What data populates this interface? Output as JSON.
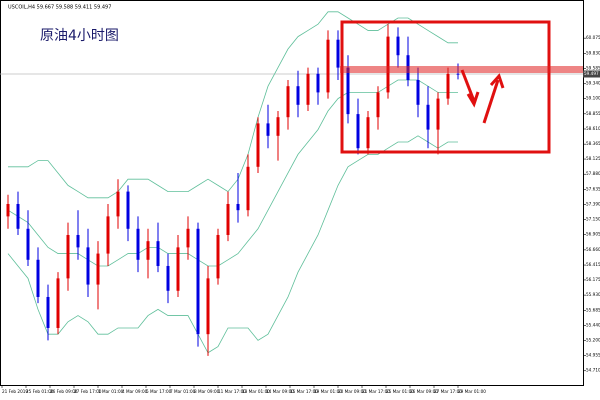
{
  "chart_data": {
    "type": "candlestick",
    "header": "USCOIL,H4 59.667 59.588 59.411 59.497",
    "annotation": "原油4小时图",
    "up_color": "#e00000",
    "down_color": "#0000e0",
    "band_color": "#5fbf9a",
    "open": [
      57.2,
      57.4,
      57.0,
      56.5,
      55.9,
      55.4,
      56.2,
      56.9,
      56.7,
      56.1,
      56.6,
      57.2,
      57.6,
      57.0,
      56.5,
      56.8,
      56.4,
      56.0,
      56.7,
      57.0,
      55.3,
      56.2,
      56.9,
      57.4,
      57.3,
      58.0,
      58.7,
      58.5,
      58.8,
      59.3,
      59.0,
      59.5,
      59.2,
      60.05,
      59.6,
      58.85,
      58.3,
      58.8,
      59.2,
      60.1,
      59.8,
      59.4,
      59.0,
      58.6,
      59.1,
      59.5
    ],
    "high": [
      57.55,
      57.6,
      57.3,
      56.7,
      56.1,
      56.3,
      57.1,
      57.3,
      57.0,
      56.8,
      57.4,
      57.8,
      57.7,
      57.2,
      57.0,
      57.1,
      56.6,
      56.9,
      57.2,
      57.1,
      56.4,
      57.0,
      57.6,
      57.9,
      58.2,
      58.8,
      59.0,
      58.9,
      59.4,
      59.55,
      59.6,
      59.6,
      60.2,
      60.2,
      59.8,
      59.1,
      58.9,
      59.3,
      60.3,
      60.25,
      60.1,
      59.6,
      59.3,
      59.2,
      59.6,
      59.667
    ],
    "low": [
      57.0,
      56.9,
      56.4,
      55.8,
      55.2,
      55.3,
      56.0,
      56.5,
      55.9,
      55.7,
      56.4,
      57.0,
      56.8,
      56.3,
      56.2,
      56.3,
      55.8,
      55.9,
      56.5,
      55.1,
      54.95,
      56.1,
      56.8,
      57.1,
      57.2,
      57.9,
      58.3,
      58.1,
      58.6,
      58.8,
      58.9,
      59.0,
      59.1,
      59.4,
      58.7,
      58.2,
      58.2,
      58.6,
      59.1,
      59.6,
      59.3,
      58.8,
      58.3,
      58.2,
      59.0,
      59.411
    ],
    "close": [
      57.4,
      57.0,
      56.5,
      55.9,
      55.4,
      56.2,
      56.9,
      56.7,
      56.1,
      56.6,
      57.2,
      57.6,
      57.0,
      56.5,
      56.8,
      56.4,
      56.0,
      56.7,
      57.0,
      55.3,
      56.2,
      56.9,
      57.4,
      57.3,
      58.0,
      58.7,
      58.5,
      58.8,
      59.3,
      59.0,
      59.5,
      59.2,
      60.05,
      59.6,
      58.85,
      58.3,
      58.8,
      59.2,
      60.1,
      59.8,
      59.4,
      59.0,
      58.6,
      59.1,
      59.5,
      59.497
    ],
    "bands": [
      {
        "values": [
          58.0,
          58.0,
          58.0,
          58.1,
          58.1,
          57.9,
          57.7,
          57.6,
          57.5,
          57.5,
          57.5,
          57.6,
          57.8,
          57.8,
          57.8,
          57.7,
          57.6,
          57.6,
          57.6,
          57.7,
          57.8,
          57.7,
          57.6,
          57.8,
          58.2,
          58.8,
          59.3,
          59.6,
          59.9,
          60.1,
          60.2,
          60.3,
          60.5,
          60.5,
          60.4,
          60.3,
          60.2,
          60.2,
          60.3,
          60.4,
          60.4,
          60.3,
          60.2,
          60.1,
          60.0,
          60.0
        ]
      },
      {
        "values": [
          57.3,
          57.2,
          57.1,
          56.9,
          56.7,
          56.6,
          56.6,
          56.6,
          56.5,
          56.4,
          56.4,
          56.5,
          56.6,
          56.6,
          56.7,
          56.7,
          56.6,
          56.6,
          56.6,
          56.5,
          56.4,
          56.4,
          56.5,
          56.6,
          56.8,
          57.0,
          57.3,
          57.6,
          57.9,
          58.2,
          58.4,
          58.6,
          58.9,
          59.1,
          59.2,
          59.2,
          59.2,
          59.2,
          59.3,
          59.4,
          59.4,
          59.4,
          59.3,
          59.2,
          59.2,
          59.2
        ]
      },
      {
        "values": [
          56.6,
          56.4,
          56.2,
          55.7,
          55.3,
          55.3,
          55.5,
          55.6,
          55.5,
          55.3,
          55.3,
          55.4,
          55.4,
          55.4,
          55.6,
          55.7,
          55.6,
          55.6,
          55.6,
          55.3,
          55.0,
          55.1,
          55.4,
          55.4,
          55.4,
          55.2,
          55.3,
          55.6,
          55.9,
          56.3,
          56.6,
          56.9,
          57.3,
          57.7,
          58.0,
          58.1,
          58.2,
          58.2,
          58.3,
          58.4,
          58.4,
          58.5,
          58.4,
          58.3,
          58.4,
          58.4
        ]
      }
    ],
    "last_price": 59.497,
    "ylim": [
      54.48,
      60.61
    ],
    "yticks": [
      {
        "value": 60.075,
        "label": "60.075"
      },
      {
        "value": 59.83,
        "label": "59.830"
      },
      {
        "value": 59.585,
        "label": "59.585"
      },
      {
        "value": 59.34,
        "label": "59.340"
      },
      {
        "value": 59.1,
        "label": "59.100"
      },
      {
        "value": 58.855,
        "label": "58.855"
      },
      {
        "value": 58.61,
        "label": "58.610"
      },
      {
        "value": 58.365,
        "label": "58.365"
      },
      {
        "value": 58.125,
        "label": "58.125"
      },
      {
        "value": 57.88,
        "label": "57.880"
      },
      {
        "value": 57.635,
        "label": "57.635"
      },
      {
        "value": 57.39,
        "label": "57.390"
      },
      {
        "value": 57.15,
        "label": "57.150"
      },
      {
        "value": 56.905,
        "label": "56.905"
      },
      {
        "value": 56.66,
        "label": "56.660"
      },
      {
        "value": 56.415,
        "label": "56.415"
      },
      {
        "value": 56.175,
        "label": "56.175"
      },
      {
        "value": 55.93,
        "label": "55.930"
      },
      {
        "value": 55.685,
        "label": "55.685"
      },
      {
        "value": 55.44,
        "label": "55.440"
      },
      {
        "value": 55.2,
        "label": "55.200"
      },
      {
        "value": 54.955,
        "label": "54.955"
      },
      {
        "value": 54.71,
        "label": "54.710"
      }
    ],
    "xtick_labels": [
      "21 Feb 2019",
      "25 Feb 01:00",
      "26 Feb 09:00",
      "27 Feb 17:00",
      "1 Mar 01:00",
      "4 Mar 09:00",
      "5 Mar 17:00",
      "7 Mar 01:00",
      "8 Mar 09:00",
      "11 Mar 17:00",
      "13 Mar 01:00",
      "14 Mar 09:00",
      "15 Mar 17:00",
      "19 Mar 01:00",
      "20 Mar 09:00",
      "21 Mar 17:00",
      "25 Mar 01:00",
      "26 Mar 09:00",
      "27 Mar 17:00",
      "29 Mar 01:00"
    ]
  }
}
